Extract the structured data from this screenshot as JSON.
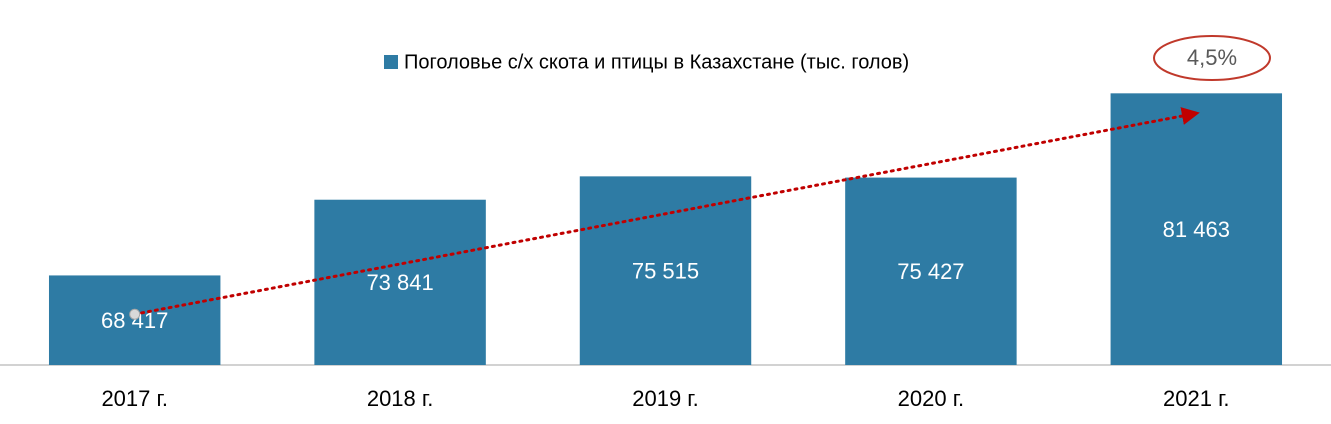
{
  "chart_data": {
    "type": "bar",
    "categories": [
      "2017 г.",
      "2018 г.",
      "2019 г.",
      "2020 г.",
      "2021 г."
    ],
    "series": [
      {
        "name": "Поголовье с/х скота и птицы в Казахстане (тыс. голов)",
        "color": "#2e7ba4",
        "values": [
          68417,
          73841,
          75515,
          75427,
          81463
        ],
        "value_labels": [
          "68 417",
          "73 841",
          "75 515",
          "75 427",
          "81 463"
        ]
      }
    ],
    "ylim": [
      62000,
      86000
    ],
    "annotation": "4,5%",
    "legend": "top"
  }
}
